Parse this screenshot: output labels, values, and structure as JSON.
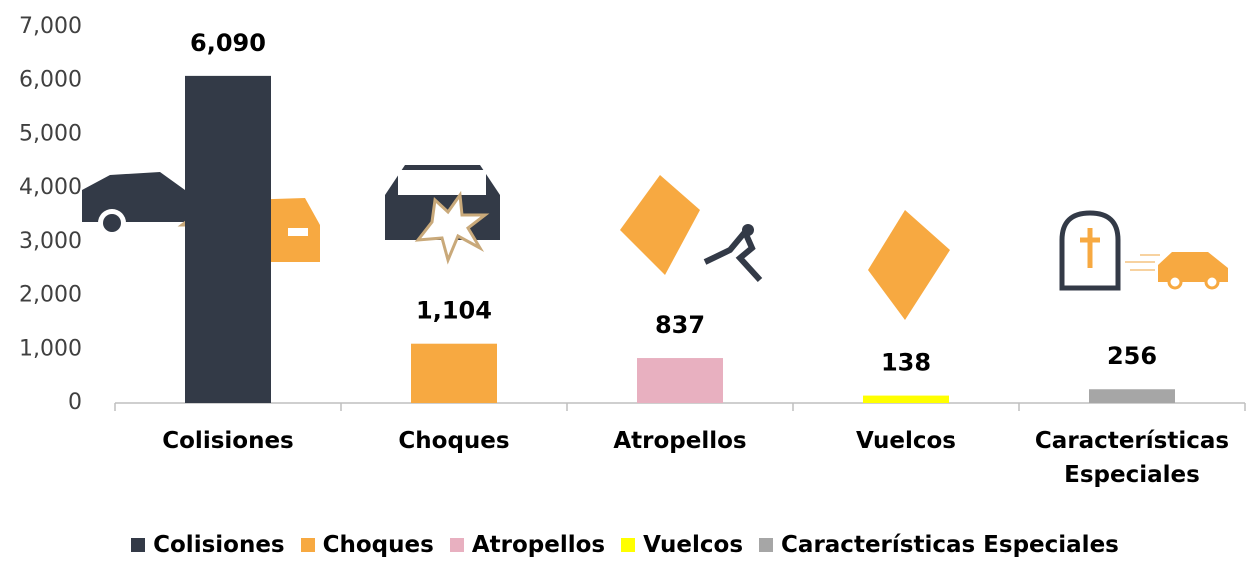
{
  "chart_data": {
    "type": "bar",
    "categories": [
      "Colisiones",
      "Choques",
      "Atropellos",
      "Vuelcos",
      "Características Especiales"
    ],
    "values": [
      6090,
      1104,
      837,
      138,
      256
    ],
    "value_labels": [
      "6,090",
      "1,104",
      "837",
      "138",
      "256"
    ],
    "colors": [
      "#333a47",
      "#f7a941",
      "#e8b0c0",
      "#ffff00",
      "#a6a6a6"
    ],
    "ylim": [
      0,
      7000
    ],
    "yticks": [
      0,
      {
        "value": 1000,
        "label": "1,000"
      },
      {
        "value": 2000,
        "label": "2,000"
      },
      {
        "value": 3000,
        "label": "3,000"
      },
      {
        "value": 4000,
        "label": "4,000"
      },
      {
        "value": 5000,
        "label": "5,000"
      },
      {
        "value": 6000,
        "label": "6,000"
      },
      {
        "value": 7000,
        "label": "7,000"
      }
    ],
    "legend": "bottom"
  }
}
